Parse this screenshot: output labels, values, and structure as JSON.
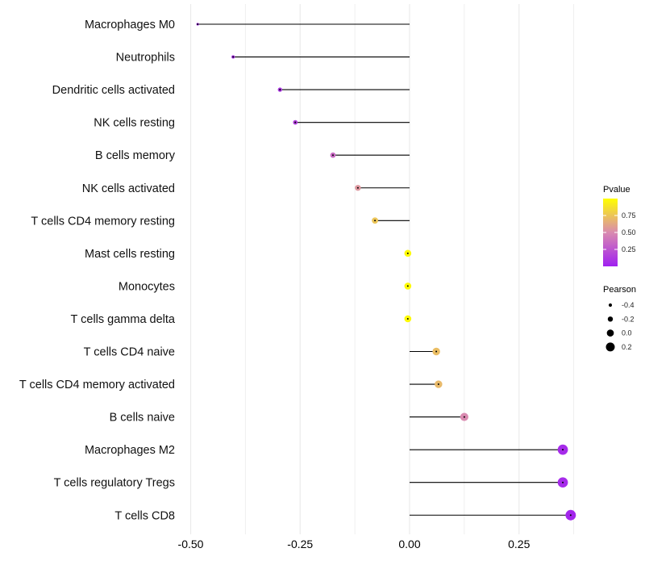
{
  "chart_data": {
    "type": "lollipop",
    "title": "",
    "xlabel": "",
    "ylabel": "",
    "xlim": [
      -0.52,
      0.52
    ],
    "x_ticks": [
      -0.5,
      -0.25,
      0.0,
      0.25
    ],
    "x_tick_labels": [
      "-0.50",
      "-0.25",
      "0.00",
      "0.25"
    ],
    "grid": true,
    "categories": [
      "Macrophages M0",
      "Neutrophils",
      "Dendritic cells activated",
      "NK cells resting",
      "B cells memory",
      "NK cells activated",
      "T cells CD4 memory resting",
      "Mast cells resting",
      "Monocytes",
      "T cells gamma delta",
      "T cells CD4 naive",
      "T cells CD4 memory activated",
      "B cells naive",
      "Macrophages M2",
      "T cells regulatory  Tregs",
      "T cells CD8"
    ],
    "values": [
      -0.484,
      -0.403,
      -0.296,
      -0.261,
      -0.175,
      -0.118,
      -0.079,
      -0.004,
      -0.004,
      -0.004,
      0.061,
      0.066,
      0.125,
      0.35,
      0.35,
      0.368
    ],
    "pvalues": [
      0.02,
      0.05,
      0.1,
      0.15,
      0.35,
      0.55,
      0.75,
      0.98,
      0.98,
      0.98,
      0.72,
      0.7,
      0.5,
      0.05,
      0.05,
      0.03
    ],
    "legend_color": {
      "title": "Pvalue",
      "ticks": [
        0.25,
        0.5,
        0.75
      ],
      "tick_labels": [
        "0.25",
        "0.50",
        "0.75"
      ],
      "low_color": "#A020F0",
      "high_color": "#FFFF00",
      "placement": "right"
    },
    "legend_size": {
      "title": "Pearson",
      "values": [
        -0.4,
        -0.2,
        0.0,
        0.2
      ],
      "labels": [
        "-0.4",
        "-0.2",
        "0.0",
        "0.2"
      ],
      "placement": "right"
    }
  }
}
